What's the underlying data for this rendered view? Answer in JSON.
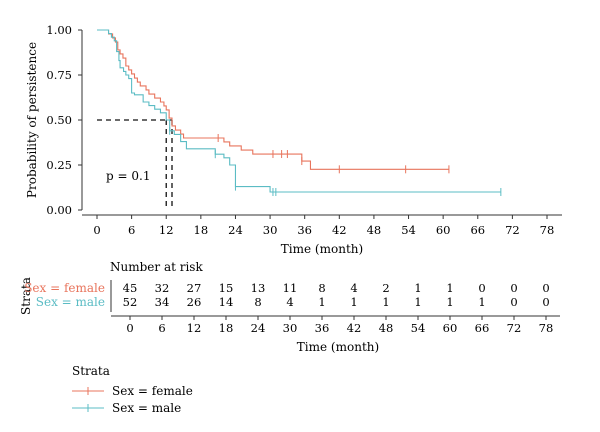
{
  "chart_data": {
    "type": "line",
    "subtype": "kaplan-meier survival curve with number-at-risk table",
    "ylabel": "Probability of persistence",
    "xlabel": "Time (month)",
    "xlim": [
      0,
      78
    ],
    "ylim": [
      0,
      1
    ],
    "x_ticks": [
      0,
      6,
      12,
      18,
      24,
      30,
      36,
      42,
      48,
      54,
      60,
      66,
      72,
      78
    ],
    "y_ticks": [
      "0.00",
      "0.25",
      "0.50",
      "0.75",
      "1.00"
    ],
    "grid": false,
    "annotation": "p = 0.1",
    "median_survival": {
      "probability": 0.5,
      "female": 13,
      "male": 12
    },
    "series": [
      {
        "name": "Sex = female",
        "color": "#E8745C",
        "steps": [
          [
            0,
            1.0
          ],
          [
            2,
            0.978
          ],
          [
            2.7,
            0.956
          ],
          [
            3.2,
            0.933
          ],
          [
            3.6,
            0.889
          ],
          [
            4,
            0.867
          ],
          [
            4.5,
            0.844
          ],
          [
            5,
            0.8
          ],
          [
            5.5,
            0.778
          ],
          [
            6,
            0.756
          ],
          [
            6.5,
            0.733
          ],
          [
            7,
            0.711
          ],
          [
            7.5,
            0.689
          ],
          [
            8.5,
            0.667
          ],
          [
            9,
            0.644
          ],
          [
            10,
            0.622
          ],
          [
            11,
            0.6
          ],
          [
            11.6,
            0.578
          ],
          [
            12,
            0.556
          ],
          [
            12.5,
            0.511
          ],
          [
            13,
            0.467
          ],
          [
            13.6,
            0.444
          ],
          [
            14.5,
            0.422
          ],
          [
            15,
            0.4
          ],
          [
            19.5,
            0.4
          ],
          [
            22,
            0.378
          ],
          [
            23,
            0.356
          ],
          [
            25,
            0.333
          ],
          [
            27,
            0.311
          ],
          [
            34.5,
            0.311
          ],
          [
            35.5,
            0.272
          ],
          [
            37,
            0.226
          ],
          [
            61,
            0.226
          ]
        ],
        "censored": [
          21,
          30.5,
          32,
          33,
          35.5,
          42,
          53.5,
          61
        ]
      },
      {
        "name": "Sex = male",
        "color": "#5BBCC4",
        "steps": [
          [
            0,
            1.0
          ],
          [
            2,
            0.98
          ],
          [
            2.5,
            0.96
          ],
          [
            3,
            0.94
          ],
          [
            3.4,
            0.88
          ],
          [
            3.8,
            0.83
          ],
          [
            4,
            0.79
          ],
          [
            4.6,
            0.77
          ],
          [
            5,
            0.75
          ],
          [
            5.5,
            0.73
          ],
          [
            6,
            0.65
          ],
          [
            6.5,
            0.64
          ],
          [
            8,
            0.6
          ],
          [
            9,
            0.58
          ],
          [
            10,
            0.56
          ],
          [
            11,
            0.54
          ],
          [
            12,
            0.5
          ],
          [
            12.6,
            0.44
          ],
          [
            13.4,
            0.42
          ],
          [
            14.5,
            0.38
          ],
          [
            15.5,
            0.34
          ],
          [
            20.5,
            0.31
          ],
          [
            22,
            0.29
          ],
          [
            23,
            0.25
          ],
          [
            24,
            0.13
          ],
          [
            30,
            0.1
          ],
          [
            70,
            0.1
          ]
        ],
        "censored": [
          12.6,
          20.5,
          24,
          30.5,
          31,
          70
        ]
      }
    ],
    "risk_table": {
      "title": "Number at risk",
      "ylabel": "Strata",
      "xlabel": "Time (month)",
      "rows": [
        {
          "label": "Sex = female",
          "counts": [
            "45",
            "32",
            "27",
            "15",
            "13",
            "11",
            "8",
            "4",
            "2",
            "1",
            "1",
            "0",
            "0",
            "0"
          ]
        },
        {
          "label": "Sex = male",
          "counts": [
            "52",
            "34",
            "26",
            "14",
            "8",
            "4",
            "1",
            "1",
            "1",
            "1",
            "1",
            "1",
            "0",
            "0"
          ]
        }
      ]
    },
    "legend": {
      "title": "Strata",
      "placement": "bottom-left",
      "entries": [
        "Sex = female",
        "Sex = male"
      ]
    }
  }
}
